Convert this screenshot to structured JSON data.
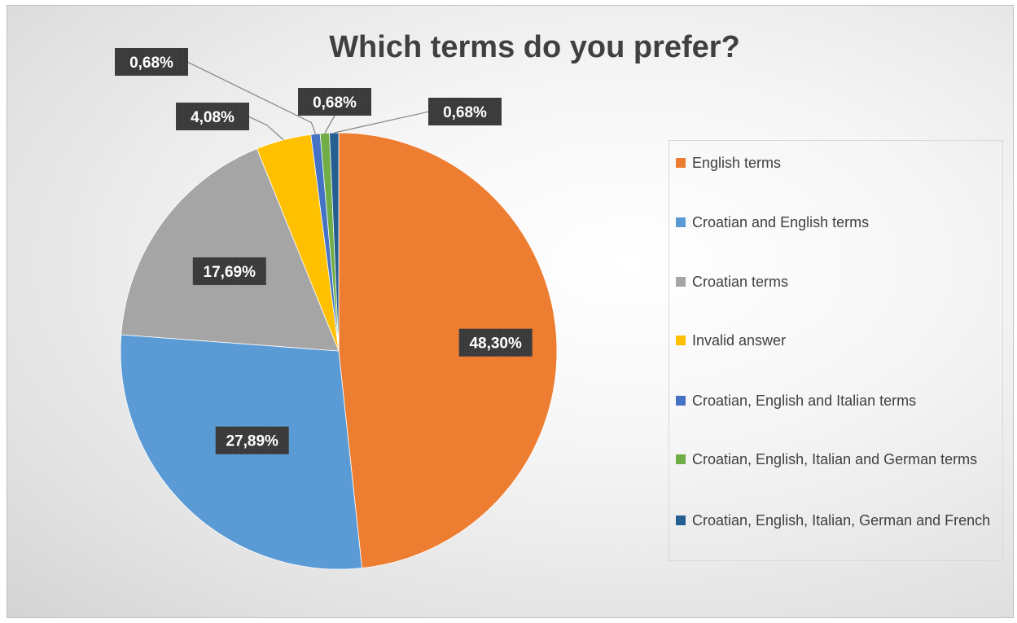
{
  "chart_data": {
    "type": "pie",
    "title": "Which terms do you prefer?",
    "slices": [
      {
        "name": "English terms",
        "value": 48.3,
        "label": "48,30%",
        "color": "#ED7D31"
      },
      {
        "name": "Croatian and English terms",
        "value": 27.89,
        "label": "27,89%",
        "color": "#5B9BD5"
      },
      {
        "name": "Croatian terms",
        "value": 17.69,
        "label": "17,69%",
        "color": "#A5A5A5"
      },
      {
        "name": "Invalid answer",
        "value": 4.08,
        "label": "4,08%",
        "color": "#FFC000"
      },
      {
        "name": "Croatian, English and Italian terms",
        "value": 0.68,
        "label": "0,68%",
        "color": "#4472C4"
      },
      {
        "name": "Croatian, English, Italian and German terms",
        "value": 0.68,
        "label": "0,68%",
        "color": "#70AD47"
      },
      {
        "name": "Croatian, English, Italian, German and French",
        "value": 0.68,
        "label": "0,68%",
        "color": "#255E91"
      }
    ],
    "legend_position": "right",
    "data_label_style": "dark callouts with leader lines"
  }
}
